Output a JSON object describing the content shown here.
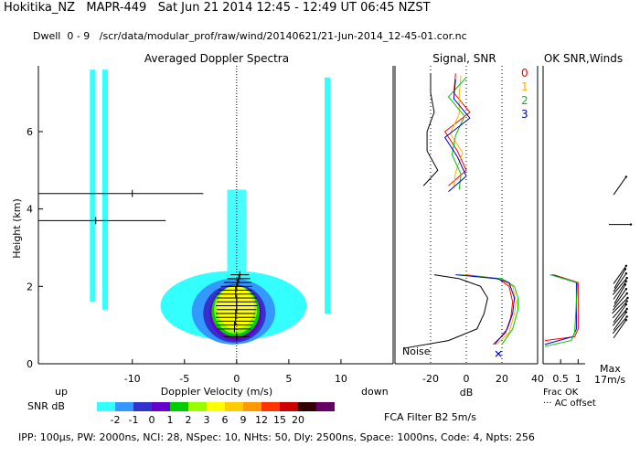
{
  "header": {
    "line1": "Hokitika_NZ   MAPR-449   Sat Jun 21 2014 12:45 - 12:49 UT 06:45 NZST",
    "line2": "Dwell  0 - 9   /scr/data/modular_prof/raw/wind/20140621/21-Jun-2014_12-45-01.cor.nc"
  },
  "colors": {
    "snr_scale": [
      "#33ffff",
      "#3399ff",
      "#3333cc",
      "#6600cc",
      "#00cc00",
      "#99ff00",
      "#ffff00",
      "#ffcc00",
      "#ff9900",
      "#ff3300",
      "#cc0000",
      "#330000",
      "#660066"
    ],
    "range_colors": [
      "#ff0000",
      "#ffb000",
      "#00c800",
      "#0000cc"
    ]
  },
  "chart_data": [
    {
      "type": "heatmap",
      "title": "Averaged Doppler Spectra",
      "xlabel": "Doppler Velocity (m/s)",
      "ylabel": "Height (km)",
      "x_ticks": [
        "-10",
        "-5",
        "0",
        "5",
        "10"
      ],
      "xlim": [
        -19,
        15
      ],
      "y_ticks": [
        "0",
        "2",
        "4",
        "6"
      ],
      "ylim": [
        0,
        7.7
      ],
      "left_note": "up",
      "right_note": "down",
      "lobes": [
        {
          "cx": -0.3,
          "cy": 1.5,
          "rx": 7.0,
          "ry": 0.9,
          "color": "#33ffff"
        },
        {
          "cx": -0.3,
          "cy": 1.35,
          "rx": 4.0,
          "ry": 0.85,
          "color": "#3399ff"
        },
        {
          "cx": -0.2,
          "cy": 1.3,
          "rx": 3.0,
          "ry": 0.75,
          "color": "#3333cc"
        },
        {
          "cx": -0.1,
          "cy": 1.3,
          "rx": 2.5,
          "ry": 0.7,
          "color": "#6600cc"
        },
        {
          "cx": -0.1,
          "cy": 1.35,
          "rx": 2.3,
          "ry": 0.65,
          "color": "#00cc00"
        },
        {
          "cx": -0.1,
          "cy": 1.4,
          "rx": 2.05,
          "ry": 0.62,
          "color": "#99ff00"
        },
        {
          "cx": -0.1,
          "cy": 1.45,
          "rx": 1.8,
          "ry": 0.55,
          "color": "#ffff00"
        }
      ],
      "mean_velocity_profile": [
        {
          "h": 0.7,
          "v": 0.0,
          "w": 1.2
        },
        {
          "h": 0.9,
          "v": -0.2,
          "w": 1.6
        },
        {
          "h": 1.0,
          "v": -0.2,
          "w": 1.7
        },
        {
          "h": 1.1,
          "v": -0.1,
          "w": 1.8
        },
        {
          "h": 1.2,
          "v": -0.1,
          "w": 1.9
        },
        {
          "h": 1.3,
          "v": -0.1,
          "w": 1.9
        },
        {
          "h": 1.4,
          "v": 0.0,
          "w": 1.9
        },
        {
          "h": 1.5,
          "v": 0.0,
          "w": 2.0
        },
        {
          "h": 1.6,
          "v": 0.0,
          "w": 1.9
        },
        {
          "h": 1.7,
          "v": 0.0,
          "w": 1.9
        },
        {
          "h": 1.8,
          "v": -0.1,
          "w": 1.8
        },
        {
          "h": 1.9,
          "v": -0.1,
          "w": 1.6
        },
        {
          "h": 2.0,
          "v": 0.0,
          "w": 1.5
        },
        {
          "h": 2.1,
          "v": 0.1,
          "w": 1.3
        },
        {
          "h": 2.2,
          "v": 0.2,
          "w": 1.1
        },
        {
          "h": 2.3,
          "v": 0.3,
          "w": 0.9
        }
      ],
      "outlier_bars": [
        {
          "h": 4.4,
          "v": -10.0,
          "from": -19,
          "to": -3.2
        },
        {
          "h": 3.7,
          "v": -13.5,
          "from": -19,
          "to": -6.8
        }
      ],
      "spurious_bands": [
        {
          "v": -13.8,
          "from": 1.6,
          "to": 7.6,
          "color": "#33ffff"
        },
        {
          "v": -12.6,
          "from": 1.4,
          "to": 7.6,
          "color": "#33ffff"
        },
        {
          "v": 8.7,
          "from": 1.3,
          "to": 7.4,
          "color": "#33ffff"
        }
      ]
    },
    {
      "type": "line",
      "title": "Signal, SNR",
      "xlabel": "dB",
      "x_ticks": [
        "-20",
        "0",
        "20",
        "40"
      ],
      "xlim": [
        -40,
        40
      ],
      "ylim": [
        0,
        7.7
      ],
      "noise_label": "Noise",
      "series": [
        {
          "name": "0",
          "color": "#ff0000",
          "points": [
            [
              15,
              0.5
            ],
            [
              22,
              0.8
            ],
            [
              25,
              1.2
            ],
            [
              26,
              1.6
            ],
            [
              24,
              2.0
            ],
            [
              18,
              2.2
            ],
            [
              0,
              2.3
            ]
          ]
        },
        {
          "name": "1",
          "color": "#ffb000",
          "points": [
            [
              17,
              0.5
            ],
            [
              24,
              0.8
            ],
            [
              27,
              1.3
            ],
            [
              28,
              1.6
            ],
            [
              26,
              2.0
            ],
            [
              19,
              2.2
            ],
            [
              -2,
              2.3
            ]
          ]
        },
        {
          "name": "2",
          "color": "#00c800",
          "points": [
            [
              20,
              0.5
            ],
            [
              26,
              0.9
            ],
            [
              29,
              1.4
            ],
            [
              29,
              1.7
            ],
            [
              27,
              2.0
            ],
            [
              20,
              2.2
            ],
            [
              -4,
              2.3
            ]
          ]
        },
        {
          "name": "3",
          "color": "#0000cc",
          "points": [
            [
              16,
              0.5
            ],
            [
              23,
              0.9
            ],
            [
              26,
              1.3
            ],
            [
              27,
              1.7
            ],
            [
              24,
              2.1
            ],
            [
              17,
              2.2
            ],
            [
              -6,
              2.3
            ]
          ]
        },
        {
          "name": "signal",
          "color": "#000000",
          "points": [
            [
              -35,
              0.4
            ],
            [
              -10,
              0.6
            ],
            [
              6,
              0.9
            ],
            [
              10,
              1.3
            ],
            [
              12,
              1.7
            ],
            [
              8,
              2.0
            ],
            [
              -4,
              2.2
            ],
            [
              -18,
              2.3
            ]
          ]
        }
      ]
    },
    {
      "type": "line",
      "title": "OK SNR,Winds",
      "xlabel": "Frac OK",
      "x_ticks": [
        "0.5",
        "1"
      ],
      "xlim": [
        0,
        1.2
      ],
      "ylim": [
        0,
        7.7
      ],
      "legend": [
        "0",
        "1",
        "2",
        "3"
      ],
      "note": "··· AC offset",
      "max_label": "Max",
      "max_value": "17m/s",
      "series": [
        {
          "name": "0",
          "color": "#ff0000",
          "points": [
            [
              0.05,
              0.6
            ],
            [
              0.9,
              0.7
            ],
            [
              1.0,
              0.9
            ],
            [
              1.0,
              2.1
            ],
            [
              0.3,
              2.3
            ]
          ]
        },
        {
          "name": "3",
          "color": "#0000cc",
          "points": [
            [
              0.05,
              0.5
            ],
            [
              0.85,
              0.7
            ],
            [
              0.95,
              0.9
            ],
            [
              0.95,
              2.1
            ],
            [
              0.25,
              2.3
            ]
          ]
        },
        {
          "name": "2",
          "color": "#00c800",
          "points": [
            [
              0.05,
              0.45
            ],
            [
              0.8,
              0.6
            ],
            [
              0.9,
              0.8
            ],
            [
              0.98,
              2.1
            ],
            [
              0.2,
              2.3
            ]
          ]
        }
      ],
      "wind_barbs": [
        {
          "h": 0.9,
          "dir": 215
        },
        {
          "h": 1.0,
          "dir": 220
        },
        {
          "h": 1.1,
          "dir": 215
        },
        {
          "h": 1.2,
          "dir": 220
        },
        {
          "h": 1.3,
          "dir": 215
        },
        {
          "h": 1.4,
          "dir": 220
        },
        {
          "h": 1.5,
          "dir": 225
        },
        {
          "h": 1.6,
          "dir": 220
        },
        {
          "h": 1.7,
          "dir": 215
        },
        {
          "h": 1.8,
          "dir": 210
        },
        {
          "h": 1.9,
          "dir": 215
        },
        {
          "h": 2.0,
          "dir": 220
        },
        {
          "h": 2.1,
          "dir": 215
        },
        {
          "h": 2.2,
          "dir": 210
        },
        {
          "h": 2.3,
          "dir": 215
        },
        {
          "h": 4.6,
          "dir": 215
        },
        {
          "h": 3.6,
          "dir": 270
        }
      ]
    }
  ],
  "colorbar": {
    "label": "SNR dB",
    "ticks": [
      "-2",
      "-1",
      "0",
      "1",
      "2",
      "3",
      "6",
      "9",
      "12",
      "15",
      "20"
    ]
  },
  "range_legend": [
    "0",
    "1",
    "2",
    "3"
  ],
  "filter_label": "FCA Filter B2  5m/s",
  "footer": "IPP: 100μs,  PW: 2000ns,  NCI:  28,  NSpec: 10, NHts: 50,  Dly: 2500ns,  Space: 1000ns,  Code: 4,  Npts: 256"
}
